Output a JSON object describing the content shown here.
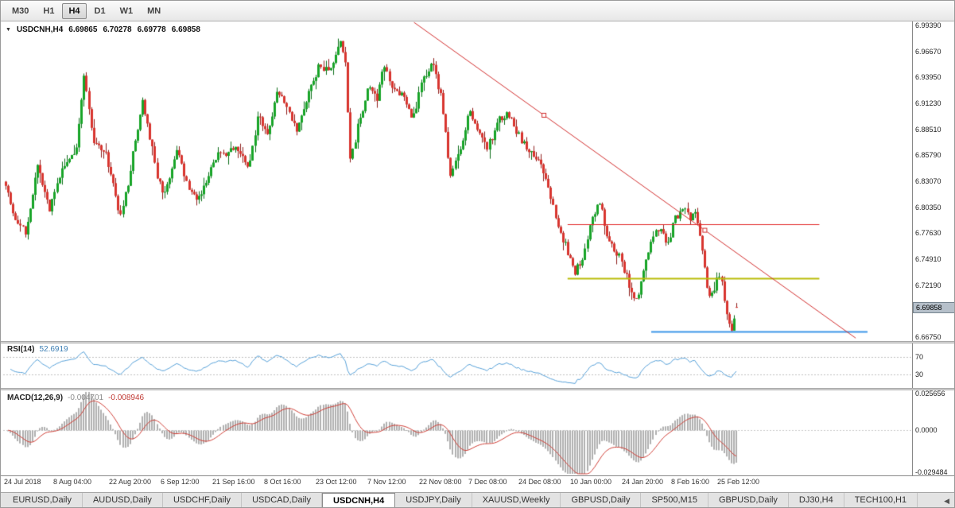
{
  "toolbar": {
    "timeframes": [
      {
        "label": "M30",
        "active": false
      },
      {
        "label": "H1",
        "active": false
      },
      {
        "label": "H4",
        "active": true
      },
      {
        "label": "D1",
        "active": false
      },
      {
        "label": "W1",
        "active": false
      },
      {
        "label": "MN",
        "active": false
      }
    ]
  },
  "chart": {
    "title": {
      "collapse_icon": "▼",
      "symbol": "USDCNH,H4",
      "open": "6.69865",
      "high": "6.70278",
      "low": "6.69778",
      "close": "6.69858"
    },
    "price_axis": [
      "6.99390",
      "6.96670",
      "6.93950",
      "6.91230",
      "6.88510",
      "6.85790",
      "6.83070",
      "6.80350",
      "6.77630",
      "6.74910",
      "6.72190",
      "6.69470",
      "6.66750"
    ],
    "price_tag": "6.69858",
    "time_axis": [
      "24 Jul 2018",
      "8 Aug 04:00",
      "22 Aug 20:00",
      "6 Sep 12:00",
      "21 Sep 16:00",
      "8 Oct 16:00",
      "23 Oct 12:00",
      "7 Nov 12:00",
      "22 Nov 08:00",
      "7 Dec 08:00",
      "24 Dec 08:00",
      "10 Jan 00:00",
      "24 Jan 20:00",
      "8 Feb 16:00",
      "25 Feb 12:00"
    ]
  },
  "rsi_panel": {
    "name": "RSI(14)",
    "value": "52.6919",
    "level_labels": [
      "70",
      "30"
    ]
  },
  "macd_panel": {
    "name": "MACD(12,26,9)",
    "value_main": "-0.004701",
    "value_signal": "-0.008946",
    "axis_labels": [
      "0.025656",
      "0.0000",
      "-0.029484"
    ]
  },
  "tabs": {
    "items": [
      {
        "label": "EURUSD,Daily",
        "active": false
      },
      {
        "label": "AUDUSD,Daily",
        "active": false
      },
      {
        "label": "USDCHF,Daily",
        "active": false
      },
      {
        "label": "USDCAD,Daily",
        "active": false
      },
      {
        "label": "USDCNH,H4",
        "active": true
      },
      {
        "label": "USDJPY,Daily",
        "active": false
      },
      {
        "label": "XAUUSD,Weekly",
        "active": false
      },
      {
        "label": "GBPUSD,Daily",
        "active": false
      },
      {
        "label": "SP500,M15",
        "active": false
      },
      {
        "label": "GBPUSD,Daily",
        "active": false
      },
      {
        "label": "DJ30,H4",
        "active": false
      },
      {
        "label": "TECH100,H1",
        "active": false
      }
    ],
    "scroll_left_icon": "◀"
  },
  "chart_data": {
    "type": "candlestick",
    "symbol": "USDCNH",
    "timeframe": "H4",
    "visible_price_range": [
      6.6629,
      6.9971
    ],
    "last_ohlc": {
      "open": 6.69865,
      "high": 6.70278,
      "low": 6.69778,
      "close": 6.69858
    },
    "candle_count": 300,
    "price_path_anchors": [
      [
        0.0,
        6.83
      ],
      [
        0.011,
        6.795
      ],
      [
        0.027,
        6.775
      ],
      [
        0.043,
        6.845
      ],
      [
        0.06,
        6.8
      ],
      [
        0.076,
        6.84
      ],
      [
        0.098,
        6.868
      ],
      [
        0.107,
        6.945
      ],
      [
        0.12,
        6.87
      ],
      [
        0.136,
        6.862
      ],
      [
        0.158,
        6.79
      ],
      [
        0.174,
        6.858
      ],
      [
        0.188,
        6.915
      ],
      [
        0.207,
        6.838
      ],
      [
        0.217,
        6.815
      ],
      [
        0.234,
        6.863
      ],
      [
        0.25,
        6.82
      ],
      [
        0.266,
        6.812
      ],
      [
        0.283,
        6.853
      ],
      [
        0.299,
        6.86
      ],
      [
        0.315,
        6.868
      ],
      [
        0.332,
        6.842
      ],
      [
        0.345,
        6.898
      ],
      [
        0.359,
        6.876
      ],
      [
        0.372,
        6.928
      ],
      [
        0.386,
        6.905
      ],
      [
        0.399,
        6.882
      ],
      [
        0.413,
        6.92
      ],
      [
        0.429,
        6.952
      ],
      [
        0.442,
        6.944
      ],
      [
        0.457,
        6.976
      ],
      [
        0.465,
        6.958
      ],
      [
        0.471,
        6.848
      ],
      [
        0.484,
        6.895
      ],
      [
        0.497,
        6.933
      ],
      [
        0.508,
        6.915
      ],
      [
        0.518,
        6.953
      ],
      [
        0.529,
        6.93
      ],
      [
        0.543,
        6.92
      ],
      [
        0.558,
        6.896
      ],
      [
        0.571,
        6.938
      ],
      [
        0.585,
        6.953
      ],
      [
        0.598,
        6.91
      ],
      [
        0.609,
        6.832
      ],
      [
        0.623,
        6.87
      ],
      [
        0.634,
        6.903
      ],
      [
        0.647,
        6.88
      ],
      [
        0.66,
        6.866
      ],
      [
        0.674,
        6.893
      ],
      [
        0.688,
        6.903
      ],
      [
        0.701,
        6.88
      ],
      [
        0.715,
        6.862
      ],
      [
        0.728,
        6.855
      ],
      [
        0.742,
        6.824
      ],
      [
        0.755,
        6.788
      ],
      [
        0.768,
        6.758
      ],
      [
        0.779,
        6.736
      ],
      [
        0.79,
        6.752
      ],
      [
        0.801,
        6.788
      ],
      [
        0.812,
        6.812
      ],
      [
        0.821,
        6.78
      ],
      [
        0.832,
        6.76
      ],
      [
        0.842,
        6.748
      ],
      [
        0.853,
        6.722
      ],
      [
        0.864,
        6.701
      ],
      [
        0.873,
        6.736
      ],
      [
        0.884,
        6.77
      ],
      [
        0.894,
        6.78
      ],
      [
        0.905,
        6.765
      ],
      [
        0.916,
        6.79
      ],
      [
        0.927,
        6.806
      ],
      [
        0.936,
        6.792
      ],
      [
        0.942,
        6.8
      ],
      [
        0.951,
        6.77
      ],
      [
        0.96,
        6.718
      ],
      [
        0.967,
        6.71
      ],
      [
        0.975,
        6.736
      ],
      [
        0.981,
        6.718
      ],
      [
        0.988,
        6.684
      ],
      [
        0.994,
        6.671
      ],
      [
        1.0,
        6.6986
      ]
    ],
    "objects": {
      "trendline": {
        "color": "#d22f2f",
        "x1": 0.452,
        "price1": 6.997,
        "x2": 0.938,
        "price2": 6.666,
        "anchor_marker_x": [
          0.595,
          0.772
        ]
      },
      "horizontal_lines": [
        {
          "color": "#e22d2d",
          "price": 6.785,
          "x1": 0.621,
          "x2": 0.898,
          "width": 1
        },
        {
          "color": "#b9bd0b",
          "price": 6.729,
          "x1": 0.621,
          "x2": 0.898,
          "width": 2
        },
        {
          "color": "#3c96e8",
          "price": 6.6725,
          "x1": 0.713,
          "x2": 0.951,
          "width": 2
        }
      ]
    },
    "indicators": {
      "rsi": {
        "period": 14,
        "current": 52.6919,
        "levels": [
          70,
          30
        ],
        "range": [
          0,
          100
        ],
        "color": "#56a0d8"
      },
      "macd": {
        "fast": 12,
        "slow": 26,
        "signal": 9,
        "current_macd": -0.004701,
        "current_signal": -0.008946,
        "range": [
          -0.029484,
          0.025656
        ],
        "histogram_color": "#b0b0b0",
        "signal_color": "#d04038"
      }
    },
    "colors": {
      "up": "#18a428",
      "up_wick": "#0d6e1a",
      "down": "#d8352f",
      "down_wick": "#8f1f1c",
      "background": "#ffffff"
    }
  }
}
